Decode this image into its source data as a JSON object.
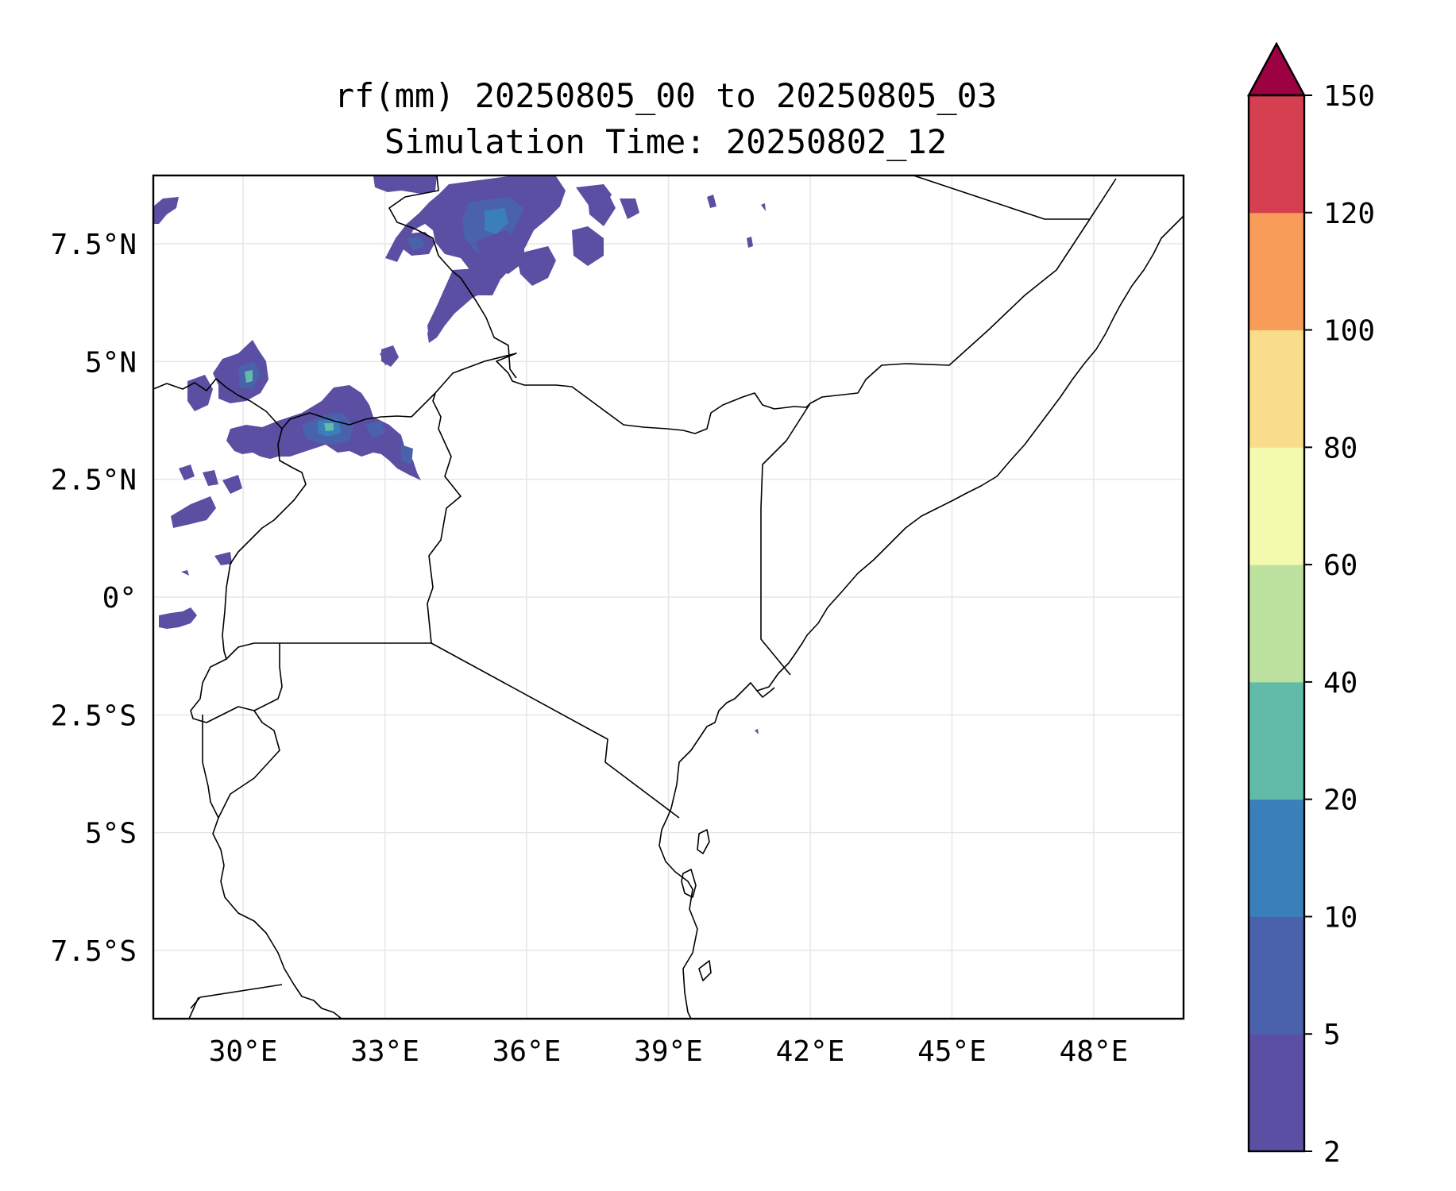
{
  "title": {
    "line1": "rf(mm) 20250805_00 to 20250805_03",
    "line2": "Simulation Time: 20250802_12"
  },
  "map": {
    "lat_ticks": [
      "7.5°N",
      "5°N",
      "2.5°N",
      "0°",
      "2.5°S",
      "5°S",
      "7.5°S"
    ],
    "lon_ticks": [
      "30°E",
      "33°E",
      "36°E",
      "39°E",
      "42°E",
      "45°E",
      "48°E"
    ],
    "extent": {
      "lon_min": 28.1,
      "lon_max": 49.9,
      "lat_min": -8.95,
      "lat_max": 8.95
    },
    "gridlines": true
  },
  "colorbar": {
    "levels": [
      2,
      5,
      10,
      20,
      40,
      60,
      80,
      100,
      120,
      150
    ],
    "tick_labels": [
      "2",
      "5",
      "10",
      "20",
      "40",
      "60",
      "80",
      "100",
      "120",
      "150"
    ],
    "colors": [
      "#5a4fa2",
      "#4a62ac",
      "#3a7fba",
      "#62bba8",
      "#bde2a0",
      "#f3f9ad",
      "#fadd8c",
      "#f89c5a",
      "#d63f50"
    ],
    "extend_color": "#9c0142",
    "extend": "max"
  },
  "colors": {
    "border": "#000000",
    "gridline": "#e6e6e6",
    "rain_low": "#5a4fa2",
    "rain_mid": "#4a62ac",
    "rain_high": "#3a7fba",
    "rain_peak": "#62bba8"
  }
}
